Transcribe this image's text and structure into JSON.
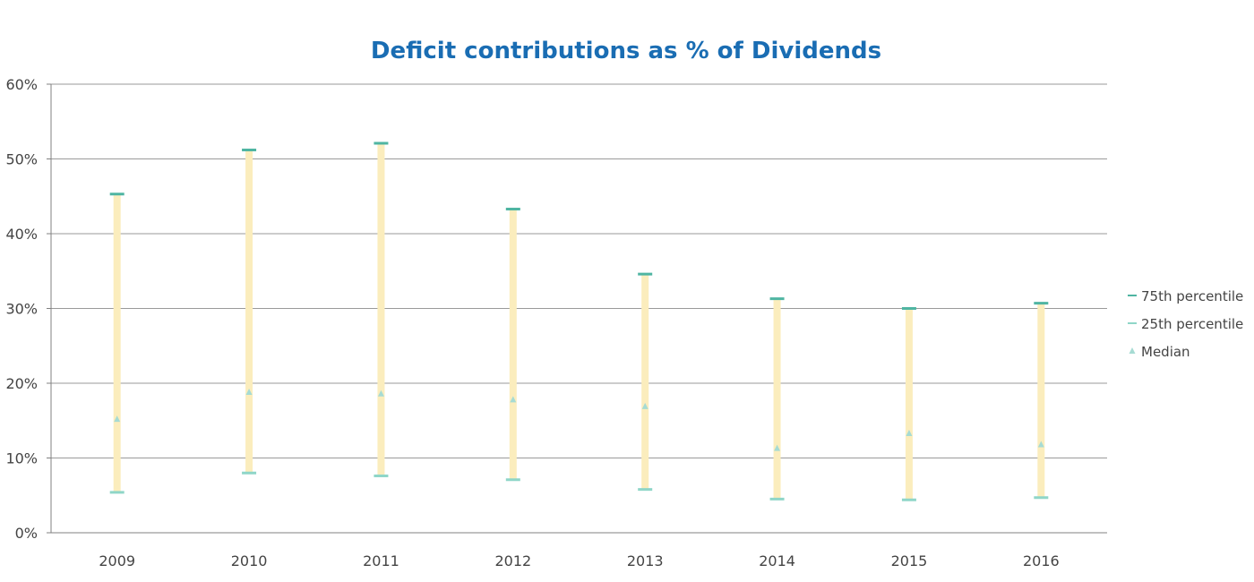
{
  "chart_data": {
    "type": "bar",
    "title": "Deficit contributions as % of Dividends",
    "categories": [
      "2009",
      "2010",
      "2011",
      "2012",
      "2013",
      "2014",
      "2015",
      "2016"
    ],
    "series": [
      {
        "name": "75th percentile",
        "values": [
          45.3,
          51.2,
          52.1,
          43.3,
          34.6,
          31.3,
          30.0,
          30.7
        ]
      },
      {
        "name": "25th percentile",
        "values": [
          5.4,
          8.0,
          7.6,
          7.1,
          5.8,
          4.5,
          4.4,
          4.7
        ]
      },
      {
        "name": "Median",
        "values": [
          15.2,
          18.8,
          18.6,
          17.8,
          16.9,
          11.3,
          13.3,
          11.8
        ]
      }
    ],
    "ylim": [
      0,
      60
    ],
    "yticks": [
      "0%",
      "10%",
      "20%",
      "30%",
      "40%",
      "50%",
      "60%"
    ],
    "ytick_values": [
      0,
      10,
      20,
      30,
      40,
      50,
      60
    ],
    "xlabel": "",
    "ylabel": "",
    "grid": true,
    "legend_position": "right"
  },
  "colors": {
    "title": "#1a6db3",
    "range_bar": "#fbedbd",
    "p75": "#4fb5a2",
    "p25": "#8fd6c8",
    "median": "#a6dbd3",
    "grid": "#9a9a9a",
    "axis": "#808080"
  }
}
